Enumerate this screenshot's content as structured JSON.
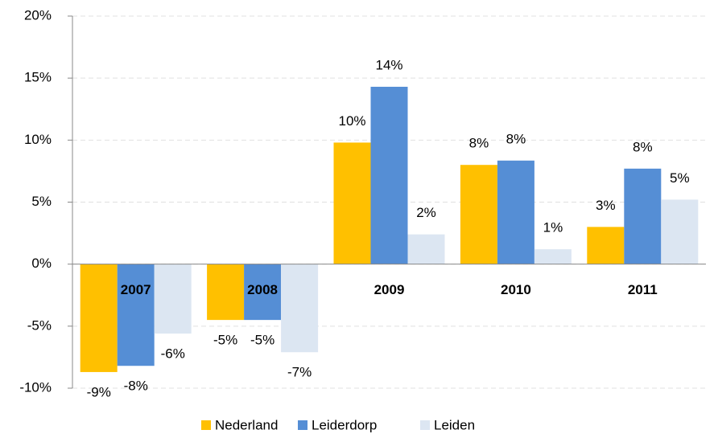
{
  "chart_data": {
    "type": "bar",
    "categories": [
      "2007",
      "2008",
      "2009",
      "2010",
      "2011"
    ],
    "series": [
      {
        "name": "Nederland",
        "color": "#ffc000",
        "values": [
          -8.7,
          -4.5,
          9.8,
          8.0,
          3.0
        ],
        "value_labels": [
          "-9%",
          "-5%",
          "10%",
          "8%",
          "3%"
        ]
      },
      {
        "name": "Leiderdorp",
        "color": "#558ed5",
        "values": [
          -8.2,
          -4.5,
          14.3,
          8.35,
          7.7
        ],
        "value_labels": [
          "-8%",
          "-5%",
          "14%",
          "8%",
          "8%"
        ]
      },
      {
        "name": "Leiden",
        "color": "#dce6f2",
        "values": [
          -5.6,
          -7.1,
          2.4,
          1.2,
          5.2
        ],
        "value_labels": [
          "-6%",
          "-7%",
          "2%",
          "1%",
          "5%"
        ]
      }
    ],
    "ylim": [
      -10,
      20
    ],
    "yticks": [
      {
        "value": -10,
        "label": "-10%"
      },
      {
        "value": -5,
        "label": "-5%"
      },
      {
        "value": 0,
        "label": "0%"
      },
      {
        "value": 5,
        "label": "5%"
      },
      {
        "value": 10,
        "label": "10%"
      },
      {
        "value": 15,
        "label": "15%"
      },
      {
        "value": 20,
        "label": "20%"
      }
    ],
    "grid": true,
    "legend": "bottom"
  }
}
